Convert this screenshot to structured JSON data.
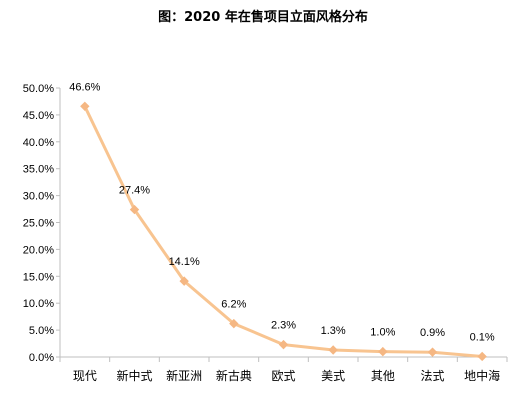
{
  "chart_data": {
    "type": "line",
    "title": "图：2020 年在售项目立面风格分布",
    "categories": [
      "现代",
      "新中式",
      "新亚洲",
      "新古典",
      "欧式",
      "美式",
      "其他",
      "法式",
      "地中海"
    ],
    "values": [
      46.6,
      27.4,
      14.1,
      6.2,
      2.3,
      1.3,
      1.0,
      0.9,
      0.1
    ],
    "data_labels": [
      "46.6%",
      "27.4%",
      "14.1%",
      "6.2%",
      "2.3%",
      "1.3%",
      "1.0%",
      "0.9%",
      "0.1%"
    ],
    "yticks": [
      "0.0%",
      "5.0%",
      "10.0%",
      "15.0%",
      "20.0%",
      "25.0%",
      "30.0%",
      "35.0%",
      "40.0%",
      "45.0%",
      "50.0%"
    ],
    "ylim": [
      0,
      50
    ],
    "ystep": 5,
    "grid": false,
    "legend": "none",
    "xlabel": "",
    "ylabel": "",
    "colors": {
      "line": "#F8C490",
      "marker": "#F5B783",
      "axis": "#BFBFBF"
    }
  }
}
